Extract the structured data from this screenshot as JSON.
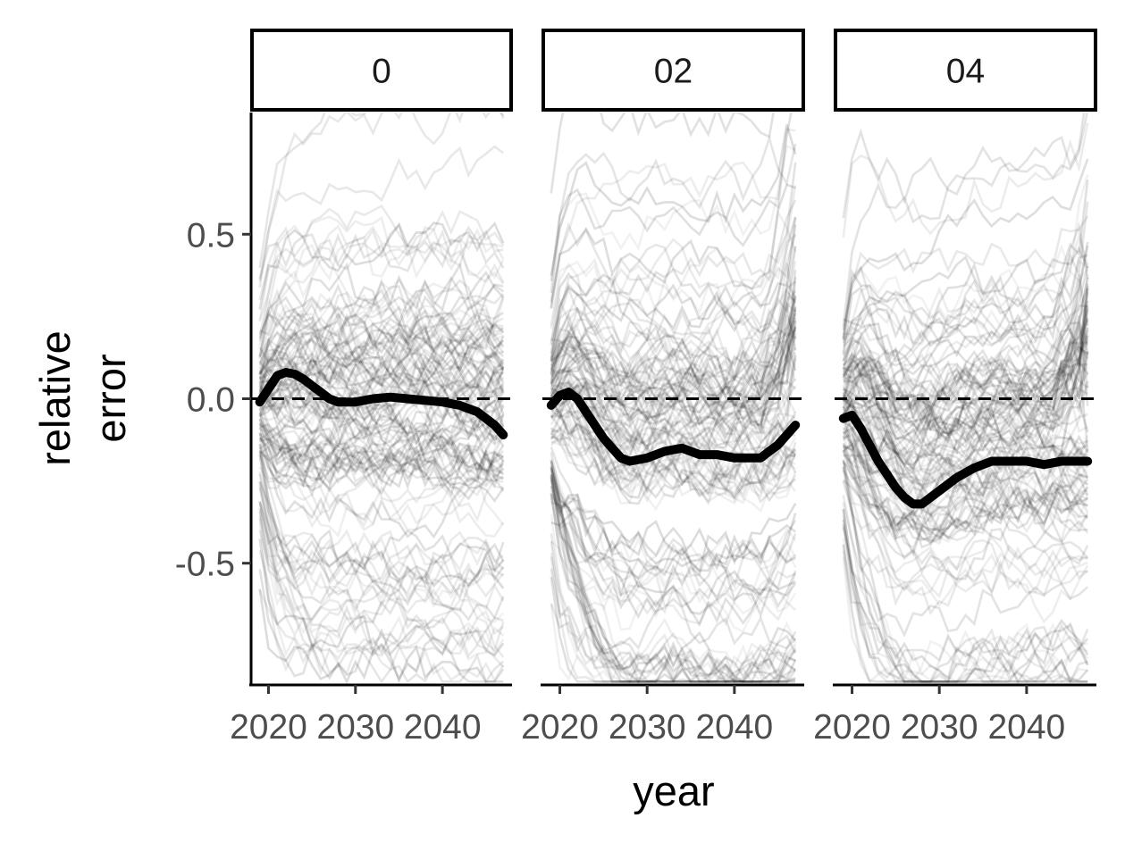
{
  "chart_data": {
    "type": "line",
    "layout": "faceted-3-panels",
    "xlabel": "year",
    "ylabel_lines": [
      "relative",
      "error"
    ],
    "xlim": [
      2018,
      2048
    ],
    "ylim": [
      -0.87,
      0.87
    ],
    "x_ticks": [
      2020,
      2030,
      2040
    ],
    "x_tick_labels": [
      "2020",
      "2030",
      "2040"
    ],
    "y_ticks": [
      0.5,
      0.0,
      -0.5
    ],
    "y_tick_labels": [
      "0.5",
      "0.0",
      "-0.5"
    ],
    "reference_line": {
      "y": 0,
      "style": "dashed"
    },
    "background_trajectories": "many semi-transparent grey lines, one per simulation",
    "colors": {
      "mean_line": "#000000",
      "trajectories": "#000000",
      "reference": "#000000"
    },
    "grid": false,
    "panels": [
      {
        "label": "0",
        "mean_series": {
          "x": [
            2019,
            2020,
            2021,
            2022,
            2023,
            2024,
            2025,
            2026,
            2027,
            2028,
            2030,
            2032,
            2034,
            2036,
            2038,
            2040,
            2042,
            2044,
            2046,
            2047
          ],
          "y": [
            -0.01,
            0.03,
            0.07,
            0.08,
            0.075,
            0.06,
            0.04,
            0.02,
            0.0,
            -0.01,
            -0.01,
            0.0,
            0.005,
            0.0,
            -0.005,
            -0.01,
            -0.02,
            -0.04,
            -0.08,
            -0.11
          ]
        }
      },
      {
        "label": "02",
        "mean_series": {
          "x": [
            2019,
            2020,
            2021,
            2022,
            2023,
            2024,
            2025,
            2026,
            2027,
            2028,
            2030,
            2032,
            2034,
            2036,
            2038,
            2040,
            2042,
            2043,
            2044,
            2045,
            2046,
            2047
          ],
          "y": [
            -0.02,
            0.01,
            0.02,
            0.0,
            -0.04,
            -0.08,
            -0.12,
            -0.15,
            -0.18,
            -0.19,
            -0.18,
            -0.16,
            -0.15,
            -0.17,
            -0.17,
            -0.18,
            -0.18,
            -0.18,
            -0.16,
            -0.14,
            -0.11,
            -0.08
          ]
        }
      },
      {
        "label": "04",
        "mean_series": {
          "x": [
            2019,
            2020,
            2021,
            2022,
            2023,
            2024,
            2025,
            2026,
            2027,
            2028,
            2030,
            2032,
            2034,
            2036,
            2038,
            2040,
            2042,
            2044,
            2046,
            2047
          ],
          "y": [
            -0.06,
            -0.05,
            -0.09,
            -0.14,
            -0.19,
            -0.23,
            -0.27,
            -0.3,
            -0.32,
            -0.32,
            -0.28,
            -0.24,
            -0.21,
            -0.19,
            -0.19,
            -0.19,
            -0.2,
            -0.19,
            -0.19,
            -0.19
          ]
        }
      }
    ]
  }
}
